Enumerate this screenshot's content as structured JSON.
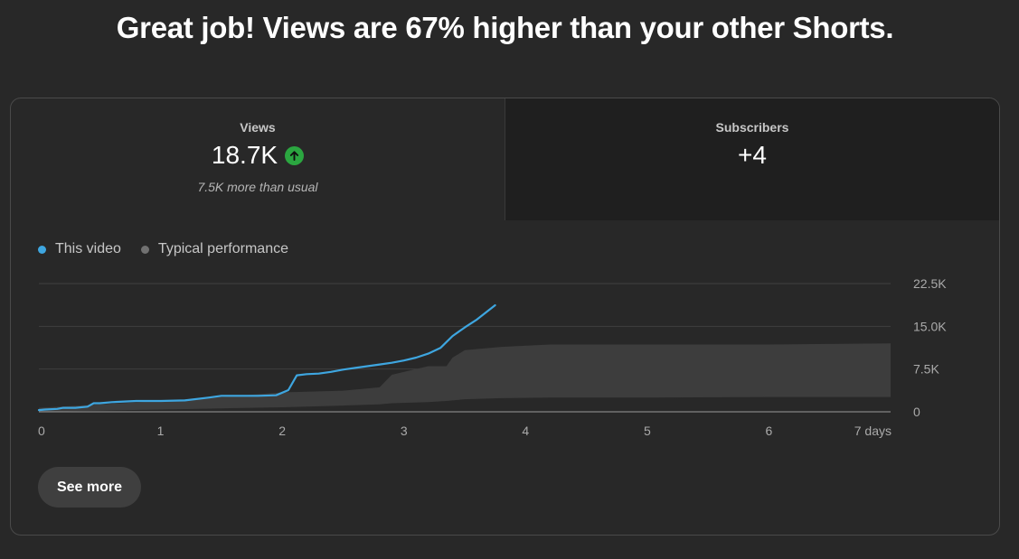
{
  "headline": "Great job! Views are 67% higher than your other Shorts.",
  "metrics": {
    "views": {
      "label": "Views",
      "value": "18.7K",
      "trend_icon": "arrow-up-icon",
      "note": "7.5K more than usual"
    },
    "subscribers": {
      "label": "Subscribers",
      "value": "+4"
    }
  },
  "legend": {
    "this_video": "This video",
    "typical": "Typical performance"
  },
  "colors": {
    "this_video": "#3ea6e0",
    "typical_band": "#3d3d3d",
    "typical_dot": "#717171",
    "trend_up": "#2ba640"
  },
  "see_more_label": "See more",
  "chart_data": {
    "type": "line",
    "title": "",
    "xlabel": "",
    "ylabel": "",
    "xlim": [
      0,
      7
    ],
    "ylim": [
      0,
      22500
    ],
    "x_ticks": [
      {
        "value": 0,
        "label": "0"
      },
      {
        "value": 1,
        "label": "1"
      },
      {
        "value": 2,
        "label": "2"
      },
      {
        "value": 3,
        "label": "3"
      },
      {
        "value": 4,
        "label": "4"
      },
      {
        "value": 5,
        "label": "5"
      },
      {
        "value": 6,
        "label": "6"
      },
      {
        "value": 7,
        "label": "7 days"
      }
    ],
    "y_ticks": [
      {
        "value": 0,
        "label": "0"
      },
      {
        "value": 7500,
        "label": "7.5K"
      },
      {
        "value": 15000,
        "label": "15.0K"
      },
      {
        "value": 22500,
        "label": "22.5K"
      }
    ],
    "grid": true,
    "legend_position": "top-left",
    "series": [
      {
        "name": "This video",
        "x": [
          0,
          0.05,
          0.15,
          0.2,
          0.3,
          0.4,
          0.45,
          0.5,
          0.6,
          0.8,
          1.0,
          1.2,
          1.4,
          1.5,
          1.6,
          1.8,
          1.95,
          2.05,
          2.12,
          2.2,
          2.3,
          2.4,
          2.5,
          2.6,
          2.7,
          2.8,
          2.9,
          3.0,
          3.1,
          3.2,
          3.3,
          3.4,
          3.5,
          3.6,
          3.75
        ],
        "y": [
          300,
          400,
          500,
          700,
          700,
          900,
          1500,
          1500,
          1700,
          1900,
          1900,
          2000,
          2500,
          2800,
          2800,
          2800,
          2900,
          3800,
          6400,
          6600,
          6700,
          7000,
          7400,
          7700,
          8000,
          8300,
          8600,
          9000,
          9500,
          10200,
          11200,
          13300,
          14800,
          16200,
          18700
        ]
      }
    ],
    "typical_band": {
      "name": "Typical performance",
      "x": [
        0,
        0.5,
        1,
        1.5,
        2,
        2.5,
        2.8,
        2.9,
        3.2,
        3.35,
        3.4,
        3.5,
        3.8,
        4.2,
        5,
        6,
        7
      ],
      "upper": [
        700,
        1300,
        1900,
        2600,
        3400,
        3700,
        4300,
        6500,
        8000,
        8000,
        9500,
        10800,
        11400,
        11800,
        11800,
        11800,
        12000
      ],
      "lower": [
        0,
        200,
        400,
        600,
        800,
        1100,
        1300,
        1500,
        1700,
        1900,
        2000,
        2200,
        2400,
        2500,
        2500,
        2600,
        2600
      ]
    }
  }
}
